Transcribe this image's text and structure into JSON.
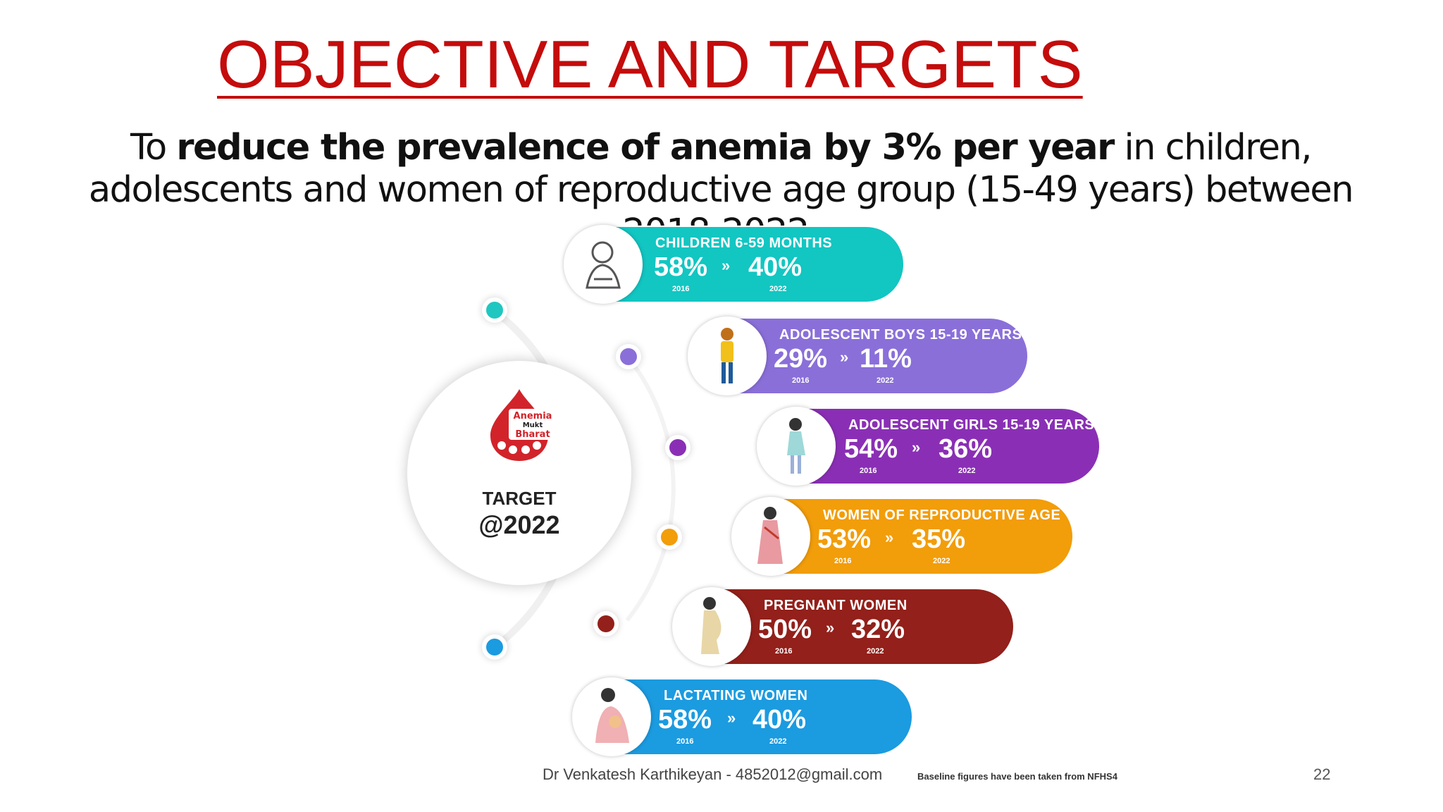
{
  "title": "OBJECTIVE AND TARGETS",
  "objective": {
    "lead": "To ",
    "bold": "reduce the prevalence of anemia by 3% per year",
    "rest": " in children, adolescents and women of reproductive age group (15-49 years) between 2018-2022."
  },
  "hub": {
    "logo_text": [
      "Anemia",
      "Mukt",
      "Bharat"
    ],
    "target_label": "TARGET",
    "target_year": "@2022"
  },
  "arrow_glyph": "»",
  "groups": [
    {
      "label": "CHILDREN 6-59 MONTHS",
      "baseline": "58%",
      "target": "40%",
      "baseline_year": "2016",
      "target_year": "2022",
      "color": "#12c6c2",
      "icon": "child-icon"
    },
    {
      "label": "ADOLESCENT BOYS 15-19 YEARS",
      "baseline": "29%",
      "target": "11%",
      "baseline_year": "2016",
      "target_year": "2022",
      "color": "#8a6fd9",
      "icon": "boy-icon"
    },
    {
      "label": "ADOLESCENT GIRLS 15-19 YEARS",
      "baseline": "54%",
      "target": "36%",
      "baseline_year": "2016",
      "target_year": "2022",
      "color": "#8a2fb5",
      "icon": "girl-icon"
    },
    {
      "label": "WOMEN OF REPRODUCTIVE AGE",
      "baseline": "53%",
      "target": "35%",
      "baseline_year": "2016",
      "target_year": "2022",
      "color": "#f29d0a",
      "icon": "woman-icon"
    },
    {
      "label": "PREGNANT WOMEN",
      "baseline": "50%",
      "target": "32%",
      "baseline_year": "2016",
      "target_year": "2022",
      "color": "#93201a",
      "icon": "pregnant-woman-icon"
    },
    {
      "label": "LACTATING WOMEN",
      "baseline": "58%",
      "target": "40%",
      "baseline_year": "2016",
      "target_year": "2022",
      "color": "#1b9be0",
      "icon": "lactating-woman-icon"
    }
  ],
  "dot_colors": [
    "#1fc7c0",
    "#8a6fd9",
    "#8a2fb5",
    "#f29d0a",
    "#93201a",
    "#1b9be0"
  ],
  "footer": {
    "author": "Dr Venkatesh Karthikeyan - 4852012@gmail.com",
    "note": "Baseline figures have been taken from NFHS4",
    "page": "22"
  }
}
